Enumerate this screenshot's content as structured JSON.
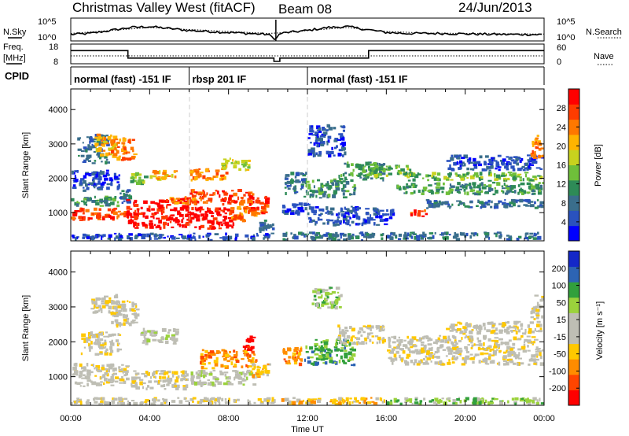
{
  "header": {
    "station": "Christmas Valley West (fitACF)",
    "beam": "Beam 08",
    "date": "24/Jun/2013"
  },
  "left_labels": {
    "nsky": "N.Sky",
    "freq_line1": "Freq.",
    "freq_line2": "[MHz]",
    "cpid": "CPID"
  },
  "right_labels": {
    "nsearch": "N.Search",
    "nave": "Nave"
  },
  "cpid_modes": [
    {
      "label": "normal (fast) -151 IF",
      "start_hour": 0,
      "end_hour": 6.0
    },
    {
      "label": "rbsp 201 IF",
      "start_hour": 6.0,
      "end_hour": 12.0
    },
    {
      "label": "normal (fast) -151 IF",
      "start_hour": 12.0,
      "end_hour": 24
    }
  ],
  "chart_data": [
    {
      "type": "line",
      "name": "noise-panel",
      "y_left_ticks": [
        "10^5",
        "10^0"
      ],
      "y_right_ticks": [
        "10^5",
        "10^0"
      ],
      "x_range_hours": [
        0,
        24
      ],
      "series": [
        {
          "name": "N.Sky",
          "style": "solid",
          "hours": [
            0,
            1,
            2,
            3,
            4,
            5,
            6,
            7,
            8,
            9,
            10,
            10.4,
            10.6,
            11,
            12,
            13,
            14,
            15,
            16,
            17,
            18,
            19,
            20,
            21,
            22,
            23,
            24
          ],
          "level": [
            0.25,
            0.3,
            0.45,
            0.6,
            0.65,
            0.55,
            0.45,
            0.4,
            0.35,
            0.3,
            0.25,
            0.0,
            0.3,
            0.35,
            0.45,
            0.6,
            0.65,
            0.5,
            0.35,
            0.3,
            0.3,
            0.3,
            0.28,
            0.26,
            0.25,
            0.25,
            0.24
          ]
        },
        {
          "name": "N.Search",
          "style": "dotted",
          "hours": [
            0,
            2,
            4,
            6,
            8,
            10,
            11,
            12,
            14,
            16,
            18,
            20,
            22,
            24
          ],
          "level": [
            0.3,
            0.45,
            0.6,
            0.5,
            0.4,
            0.3,
            0.35,
            0.45,
            0.6,
            0.4,
            0.32,
            0.3,
            0.28,
            0.27
          ]
        }
      ]
    },
    {
      "type": "line",
      "name": "frequency-nave-panel",
      "y_left_ticks": [
        "18",
        "8"
      ],
      "y_right_ticks": [
        "60",
        "0"
      ],
      "x_range_hours": [
        0,
        24
      ],
      "series": [
        {
          "name": "Freq",
          "style": "solid",
          "unit": "MHz",
          "hours": [
            0,
            2.9,
            2.9,
            10.3,
            10.3,
            10.6,
            10.6,
            15.1,
            15.1,
            24
          ],
          "values": [
            15,
            15,
            10.5,
            10.5,
            8.5,
            8.5,
            10.5,
            10.5,
            15,
            15
          ]
        },
        {
          "name": "Nave",
          "style": "dotted",
          "hours": [
            0,
            24
          ],
          "values": [
            23,
            23
          ]
        }
      ]
    },
    {
      "type": "heatmap",
      "name": "power-panel",
      "ylabel": "Slant Range [km]",
      "y_ticks": [
        1000,
        2000,
        3000,
        4000
      ],
      "ylim": [
        180,
        4600
      ],
      "x_range_hours": [
        0,
        24
      ],
      "colorbar": {
        "label": "Power [dB]",
        "ticks": [
          "28",
          "24",
          "20",
          "16",
          "12",
          "8",
          "4"
        ],
        "colors": [
          "#0000ff",
          "#2a52be",
          "#3a6e8c",
          "#2e8b57",
          "#6fbf3a",
          "#c8d21e",
          "#ffb400",
          "#ff7800",
          "#ff3c00",
          "#ff0000"
        ]
      },
      "regions": [
        {
          "h0": 0.0,
          "h1": 3.0,
          "r0": 750,
          "r1": 1150,
          "c": 8
        },
        {
          "h0": 0.0,
          "h1": 2.5,
          "r0": 1150,
          "r1": 1500,
          "c": 3
        },
        {
          "h0": 0.0,
          "h1": 2.6,
          "r0": 1600,
          "r1": 2250,
          "c": 1
        },
        {
          "h0": 0.3,
          "h1": 2.0,
          "r0": 2400,
          "r1": 3300,
          "c": 2
        },
        {
          "h0": 1.2,
          "h1": 2.4,
          "r0": 2600,
          "r1": 3300,
          "c": 6
        },
        {
          "h0": 2.0,
          "h1": 3.4,
          "r0": 2500,
          "r1": 3200,
          "c": 7
        },
        {
          "h0": 2.4,
          "h1": 3.2,
          "r0": 1200,
          "r1": 1700,
          "c": 2
        },
        {
          "h0": 2.8,
          "h1": 6.2,
          "r0": 500,
          "r1": 1450,
          "c": 9
        },
        {
          "h0": 3.0,
          "h1": 4.0,
          "r0": 1800,
          "r1": 2200,
          "c": 4
        },
        {
          "h0": 4.0,
          "h1": 5.5,
          "r0": 1900,
          "r1": 2250,
          "c": 6
        },
        {
          "h0": 5.0,
          "h1": 6.5,
          "r0": 1200,
          "r1": 1500,
          "c": 7
        },
        {
          "h0": 6.0,
          "h1": 8.3,
          "r0": 500,
          "r1": 1200,
          "c": 9
        },
        {
          "h0": 6.0,
          "h1": 9.4,
          "r0": 1200,
          "r1": 1700,
          "c": 8
        },
        {
          "h0": 6.0,
          "h1": 8.0,
          "r0": 1900,
          "r1": 2300,
          "c": 7
        },
        {
          "h0": 7.5,
          "h1": 9.2,
          "r0": 2200,
          "r1": 2600,
          "c": 5
        },
        {
          "h0": 8.0,
          "h1": 9.5,
          "r0": 700,
          "r1": 1200,
          "c": 7
        },
        {
          "h0": 9.0,
          "h1": 10.2,
          "r0": 900,
          "r1": 1500,
          "c": 8
        },
        {
          "h0": 9.5,
          "h1": 10.4,
          "r0": 400,
          "r1": 800,
          "c": 2
        },
        {
          "h0": 10.7,
          "h1": 12.2,
          "r0": 900,
          "r1": 1300,
          "c": 1
        },
        {
          "h0": 10.8,
          "h1": 12.0,
          "r0": 1500,
          "r1": 2200,
          "c": 2
        },
        {
          "h0": 11.8,
          "h1": 14.5,
          "r0": 1400,
          "r1": 2000,
          "c": 3
        },
        {
          "h0": 12.0,
          "h1": 14.0,
          "r0": 2600,
          "r1": 3600,
          "c": 1
        },
        {
          "h0": 13.5,
          "h1": 16.0,
          "r0": 1900,
          "r1": 2500,
          "c": 3
        },
        {
          "h0": 15.0,
          "h1": 17.5,
          "r0": 2000,
          "r1": 2400,
          "c": 4
        },
        {
          "h0": 12.0,
          "h1": 16.5,
          "r0": 600,
          "r1": 1200,
          "c": 1
        },
        {
          "h0": 16.5,
          "h1": 24.0,
          "r0": 1500,
          "r1": 1900,
          "c": 3
        },
        {
          "h0": 17.0,
          "h1": 24.0,
          "r0": 1900,
          "r1": 2200,
          "c": 4
        },
        {
          "h0": 17.2,
          "h1": 18.2,
          "r0": 850,
          "r1": 1100,
          "c": 8
        },
        {
          "h0": 18.0,
          "h1": 24.0,
          "r0": 1100,
          "r1": 1400,
          "c": 2
        },
        {
          "h0": 19.0,
          "h1": 24.0,
          "r0": 2200,
          "r1": 2700,
          "c": 1
        },
        {
          "h0": 23.3,
          "h1": 24.0,
          "r0": 2500,
          "r1": 3300,
          "c": 7
        },
        {
          "h0": 0.0,
          "h1": 10.4,
          "r0": 180,
          "r1": 420,
          "c": 1
        },
        {
          "h0": 10.6,
          "h1": 24.0,
          "r0": 180,
          "r1": 450,
          "c": 2
        }
      ]
    },
    {
      "type": "heatmap",
      "name": "velocity-panel",
      "ylabel": "Slant Range [km]",
      "y_ticks": [
        1000,
        2000,
        3000,
        4000
      ],
      "ylim": [
        180,
        4600
      ],
      "x_range_hours": [
        0,
        24
      ],
      "xlabel": "Time UT",
      "x_ticks": [
        "00:00",
        "04:00",
        "08:00",
        "12:00",
        "16:00",
        "20:00",
        "00:00"
      ],
      "colorbar": {
        "label": "Velocity [m s⁻¹]",
        "ticks": [
          "200",
          "100",
          "50",
          "15",
          "-15",
          "-50",
          "-100",
          "-200"
        ],
        "colors": [
          "#ff0000",
          "#ff4500",
          "#ff8c00",
          "#ffc800",
          "#bebeb4",
          "#bebeb4",
          "#9bd23c",
          "#32a03c",
          "#2d64b4",
          "#1428c8"
        ]
      },
      "regions": [
        {
          "h0": 0.0,
          "h1": 3.0,
          "r0": 700,
          "r1": 1400,
          "c": 4
        },
        {
          "h0": 0.5,
          "h1": 2.6,
          "r0": 1600,
          "r1": 2300,
          "c": 4
        },
        {
          "h0": 1.0,
          "h1": 2.5,
          "r0": 2800,
          "r1": 3400,
          "c": 4
        },
        {
          "h0": 2.0,
          "h1": 3.5,
          "r0": 2400,
          "r1": 3200,
          "c": 4
        },
        {
          "h0": 3.0,
          "h1": 6.0,
          "r0": 600,
          "r1": 1200,
          "c": 4
        },
        {
          "h0": 3.5,
          "h1": 5.5,
          "r0": 1900,
          "r1": 2400,
          "c": 5
        },
        {
          "h0": 6.0,
          "h1": 9.5,
          "r0": 700,
          "r1": 1200,
          "c": 5
        },
        {
          "h0": 6.5,
          "h1": 9.5,
          "r0": 1200,
          "r1": 1800,
          "c": 2
        },
        {
          "h0": 8.7,
          "h1": 9.4,
          "r0": 1700,
          "r1": 2200,
          "c": 0
        },
        {
          "h0": 9.0,
          "h1": 10.2,
          "r0": 900,
          "r1": 1400,
          "c": 3
        },
        {
          "h0": 10.7,
          "h1": 11.8,
          "r0": 1300,
          "r1": 1900,
          "c": 2
        },
        {
          "h0": 11.8,
          "h1": 14.5,
          "r0": 1300,
          "r1": 2100,
          "c": 7
        },
        {
          "h0": 12.2,
          "h1": 13.8,
          "r0": 2900,
          "r1": 3600,
          "c": 6
        },
        {
          "h0": 13.5,
          "h1": 16.0,
          "r0": 1900,
          "r1": 2500,
          "c": 4
        },
        {
          "h0": 16.0,
          "h1": 24.0,
          "r0": 1300,
          "r1": 2200,
          "c": 4
        },
        {
          "h0": 19.0,
          "h1": 24.0,
          "r0": 2200,
          "r1": 2600,
          "c": 4
        },
        {
          "h0": 23.3,
          "h1": 24.0,
          "r0": 2600,
          "r1": 3400,
          "c": 4
        },
        {
          "h0": 0.0,
          "h1": 10.4,
          "r0": 180,
          "r1": 420,
          "c": 4
        },
        {
          "h0": 10.6,
          "h1": 16.0,
          "r0": 180,
          "r1": 420,
          "c": 3
        },
        {
          "h0": 16.0,
          "h1": 24.0,
          "r0": 180,
          "r1": 420,
          "c": 6
        }
      ]
    }
  ]
}
